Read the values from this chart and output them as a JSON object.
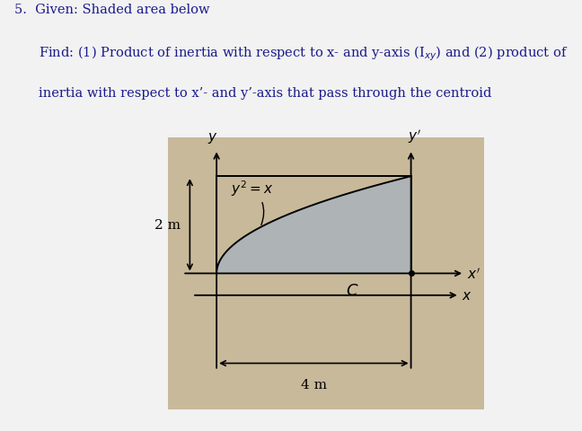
{
  "title_text": "5.  Given: Shaded area below\n    Find: (1) Product of inertia with respect to x- and y-axis (I$_{xy}$) and (2) product of\n    inertia with respect to x’- and y’-axis that pass through the centroid",
  "x_max": 4,
  "y_max": 2,
  "curve_label": "$y^2 = x$",
  "centroid_label": "$C$",
  "dim_x_label": "4 m",
  "dim_y_label": "2 m",
  "shaded_color": "#aab4bb",
  "shaded_alpha": 0.85,
  "box_bg": "#c8b99a",
  "figure_bg": "#f2f2f2",
  "text_color": "#1a1a8c",
  "axis_color": "#000000",
  "fig_width": 6.48,
  "fig_height": 4.81,
  "dpi": 100
}
